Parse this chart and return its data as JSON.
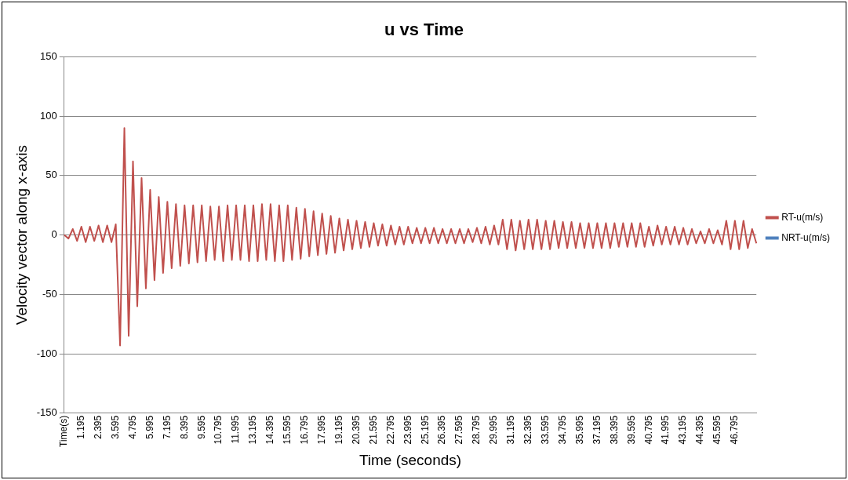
{
  "chart_data": {
    "type": "line",
    "title": "u vs Time",
    "xlabel": "Time (seconds)",
    "ylabel": "Velocity vector along x-axis",
    "categories": [
      "Time(s)",
      null,
      null,
      null,
      "1.195",
      null,
      null,
      null,
      "2.395",
      null,
      null,
      null,
      "3.595",
      null,
      null,
      null,
      "4.795",
      null,
      null,
      null,
      "5.995",
      null,
      null,
      null,
      "7.195",
      null,
      null,
      null,
      "8.395",
      null,
      null,
      null,
      "9.595",
      null,
      null,
      null,
      "10.795",
      null,
      null,
      null,
      "11.995",
      null,
      null,
      null,
      "13.195",
      null,
      null,
      null,
      "14.395",
      null,
      null,
      null,
      "15.595",
      null,
      null,
      null,
      "16.795",
      null,
      null,
      null,
      "17.995",
      null,
      null,
      null,
      "19.195",
      null,
      null,
      null,
      "20.395",
      null,
      null,
      null,
      "21.595",
      null,
      null,
      null,
      "22.795",
      null,
      null,
      null,
      "23.995",
      null,
      null,
      null,
      "25.195",
      null,
      null,
      null,
      "26.395",
      null,
      null,
      null,
      "27.595",
      null,
      null,
      null,
      "28.795",
      null,
      null,
      null,
      "29.995",
      null,
      null,
      null,
      "31.195",
      null,
      null,
      null,
      "32.395",
      null,
      null,
      null,
      "33.595",
      null,
      null,
      null,
      "34.795",
      null,
      null,
      null,
      "35.995",
      null,
      null,
      null,
      "37.195",
      null,
      null,
      null,
      "38.395",
      null,
      null,
      null,
      "39.595",
      null,
      null,
      null,
      "40.795",
      null,
      null,
      null,
      "41.995",
      null,
      null,
      null,
      "43.195",
      null,
      null,
      null,
      "44.395",
      null,
      null,
      null,
      "45.595",
      null,
      null,
      null,
      "46.795",
      null,
      null,
      null,
      null,
      null
    ],
    "series": [
      {
        "name": "RT-u(m/s)",
        "color": "#c0504d",
        "values": [
          0,
          -3,
          5,
          -5,
          7,
          -6,
          7,
          -5,
          8,
          -6,
          8,
          -6,
          9,
          -93,
          90,
          -85,
          62,
          -60,
          48,
          -45,
          38,
          -38,
          32,
          -32,
          28,
          -28,
          26,
          -26,
          25,
          -24,
          25,
          -23,
          25,
          -22,
          24,
          -21,
          24,
          -22,
          25,
          -21,
          25,
          -21,
          25,
          -22,
          25,
          -22,
          26,
          -21,
          26,
          -22,
          25,
          -22,
          25,
          -21,
          23,
          -20,
          22,
          -18,
          20,
          -17,
          18,
          -16,
          16,
          -15,
          14,
          -13,
          13,
          -12,
          12,
          -11,
          11,
          -10,
          10,
          -9,
          9,
          -9,
          8,
          -8,
          7,
          -8,
          7,
          -7,
          6,
          -7,
          6,
          -7,
          6,
          -7,
          5,
          -7,
          5,
          -7,
          5,
          -7,
          5,
          -6,
          6,
          -7,
          7,
          -8,
          8,
          -8,
          13,
          -12,
          13,
          -13,
          12,
          -12,
          13,
          -12,
          13,
          -12,
          12,
          -12,
          12,
          -11,
          11,
          -11,
          11,
          -11,
          10,
          -11,
          10,
          -11,
          10,
          -11,
          10,
          -11,
          10,
          -10,
          10,
          -10,
          10,
          -10,
          10,
          -10,
          7,
          -9,
          8,
          -8,
          7,
          -8,
          7,
          -8,
          6,
          -8,
          5,
          -7,
          3,
          -7,
          5,
          -7,
          4,
          -8,
          12,
          -12,
          12,
          -12,
          12,
          -11,
          5,
          -7
        ]
      },
      {
        "name": "NRT-u(m/s)",
        "color": "#4f81bd",
        "values": [
          null,
          null,
          null,
          null,
          null,
          null,
          null,
          null,
          null,
          null,
          null,
          null,
          null,
          null,
          null,
          null,
          null,
          null,
          null,
          null,
          null,
          null,
          null,
          null,
          null,
          null,
          null,
          null,
          null,
          null,
          null,
          null,
          null,
          null,
          null,
          null,
          null,
          null,
          null,
          null,
          null,
          null,
          null,
          null,
          null,
          null,
          null,
          null,
          null,
          null,
          null,
          null,
          null,
          null,
          null,
          null,
          null,
          null,
          null,
          null,
          null,
          null,
          null,
          null,
          null,
          null,
          null,
          null,
          null,
          null,
          null,
          null,
          null,
          null,
          null,
          null,
          null,
          null,
          null,
          null,
          null,
          null,
          null,
          null,
          null,
          null,
          null,
          null,
          null,
          null,
          null,
          null,
          null,
          null,
          null,
          null,
          null,
          null,
          null,
          null,
          null,
          null,
          null,
          null,
          null,
          null,
          null,
          null,
          null,
          null,
          null,
          null,
          null,
          null,
          null,
          null,
          null,
          null,
          null,
          null,
          null,
          null,
          null,
          null,
          null,
          null,
          null,
          null,
          null,
          null,
          null,
          null,
          null,
          null,
          null,
          null,
          null,
          null,
          null,
          null,
          null,
          null,
          null,
          null,
          null,
          null,
          null,
          null,
          null,
          null,
          null,
          null,
          null,
          null,
          null,
          null,
          null,
          null,
          null,
          null,
          null,
          null
        ]
      }
    ],
    "ylim": [
      -150,
      150
    ],
    "yticks": [
      -150,
      -100,
      -50,
      0,
      50,
      100,
      150
    ],
    "grid": "y",
    "legend": "right",
    "marker": "none",
    "line_style": "solid"
  }
}
